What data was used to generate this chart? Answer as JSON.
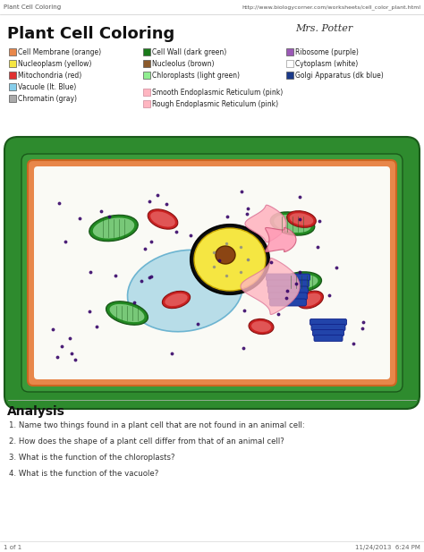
{
  "page_title": "Plant Cell Coloring",
  "url_text": "http://www.biologycorner.com/worksheets/cell_color_plant.html",
  "browser_title": "Plant Cell Coloring",
  "signature": "Mrs. Potter",
  "legend_col1": [
    {
      "color": "#E8874A",
      "label": "Cell Membrane (orange)"
    },
    {
      "color": "#F5E642",
      "label": "Nucleoplasm (yellow)"
    },
    {
      "color": "#E03030",
      "label": "Mitochondria (red)"
    },
    {
      "color": "#87CEEB",
      "label": "Vacuole (lt. Blue)"
    },
    {
      "color": "#AAAAAA",
      "label": "Chromatin (gray)"
    }
  ],
  "legend_col2": [
    {
      "color": "#1A7A1A",
      "label": "Cell Wall (dark green)"
    },
    {
      "color": "#8B5A2B",
      "label": "Nucleolus (brown)"
    },
    {
      "color": "#90EE90",
      "label": "Chloroplasts (light green)"
    }
  ],
  "legend_col2_bottom": [
    {
      "color": "#FFB6C1",
      "label": "Smooth Endoplasmic Reticulum (pink)"
    },
    {
      "color": "#FFB6C1",
      "label": "Rough Endoplasmic Reticulum (pink)"
    }
  ],
  "legend_col3": [
    {
      "color": "#9B59B6",
      "label": "Ribosome (purple)"
    },
    {
      "color": "#FFFFFF",
      "label": "Cytoplasm (white)"
    },
    {
      "color": "#1A3A8A",
      "label": "Golgi Apparatus (dk blue)"
    }
  ],
  "analysis_title": "Analysis",
  "analysis_questions": [
    "1. Name two things found in a plant cell that are not found in an animal cell:",
    "2. How does the shape of a plant cell differ from that of an animal cell?",
    "3. What is the function of the chloroplasts?",
    "4. What is the function of the vacuole?"
  ],
  "footer_left": "1 of 1",
  "footer_right": "11/24/2013  6:24 PM",
  "bg_color": "#FFFFFF"
}
